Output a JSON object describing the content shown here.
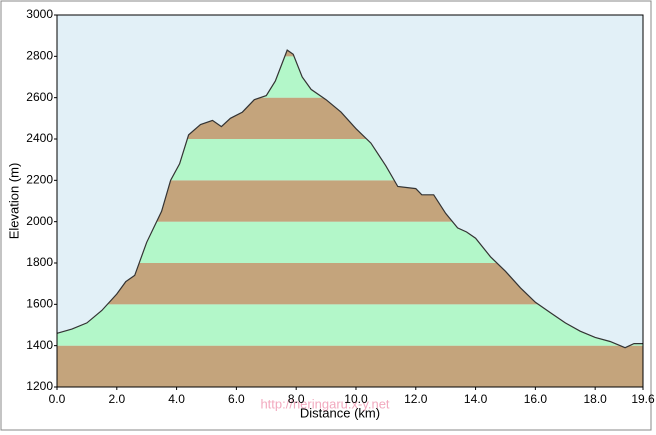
{
  "chart_data": {
    "type": "area",
    "x_label": "Distance (km)",
    "y_label": "Elevation (m)",
    "watermark": "http://neringaru.x-y.net",
    "x": [
      0,
      0.5,
      1.0,
      1.5,
      2.0,
      2.3,
      2.6,
      3.0,
      3.5,
      3.8,
      4.1,
      4.4,
      4.8,
      5.2,
      5.5,
      5.8,
      6.2,
      6.6,
      7.0,
      7.3,
      7.7,
      7.9,
      8.2,
      8.5,
      9.0,
      9.5,
      10.0,
      10.5,
      11.0,
      11.4,
      12.0,
      12.2,
      12.6,
      13.0,
      13.4,
      13.7,
      14.0,
      14.5,
      15.0,
      15.5,
      16.0,
      16.5,
      17.0,
      17.5,
      18.0,
      18.5,
      19.0,
      19.3,
      19.6
    ],
    "values": [
      1460,
      1480,
      1510,
      1570,
      1650,
      1710,
      1740,
      1900,
      2050,
      2200,
      2280,
      2420,
      2470,
      2490,
      2460,
      2500,
      2530,
      2590,
      2610,
      2680,
      2830,
      2810,
      2700,
      2640,
      2590,
      2530,
      2450,
      2380,
      2270,
      2170,
      2160,
      2130,
      2130,
      2040,
      1970,
      1950,
      1920,
      1830,
      1760,
      1680,
      1610,
      1560,
      1510,
      1470,
      1440,
      1420,
      1390,
      1410,
      1410
    ],
    "color": "#333333",
    "band_colors": [
      "#c4a47c",
      "#b3f7c9"
    ],
    "background": "#e2f0f7",
    "xlim": [
      0,
      19.6
    ],
    "xticks": [
      {
        "value": 0,
        "label": "0.0"
      },
      {
        "value": 2,
        "label": "2.0"
      },
      {
        "value": 4,
        "label": "4.0"
      },
      {
        "value": 6,
        "label": "6.0"
      },
      {
        "value": 8,
        "label": "8.0"
      },
      {
        "value": 10,
        "label": "10.0"
      },
      {
        "value": 12,
        "label": "12.0"
      },
      {
        "value": 14,
        "label": "14.0"
      },
      {
        "value": 16,
        "label": "16.0"
      },
      {
        "value": 18,
        "label": "18.0"
      },
      19.6
    ],
    "ylim": [
      1200,
      3000
    ],
    "yticks": [
      1200,
      1400,
      1600,
      1800,
      2000,
      2200,
      2400,
      2600,
      2800,
      3000
    ]
  }
}
